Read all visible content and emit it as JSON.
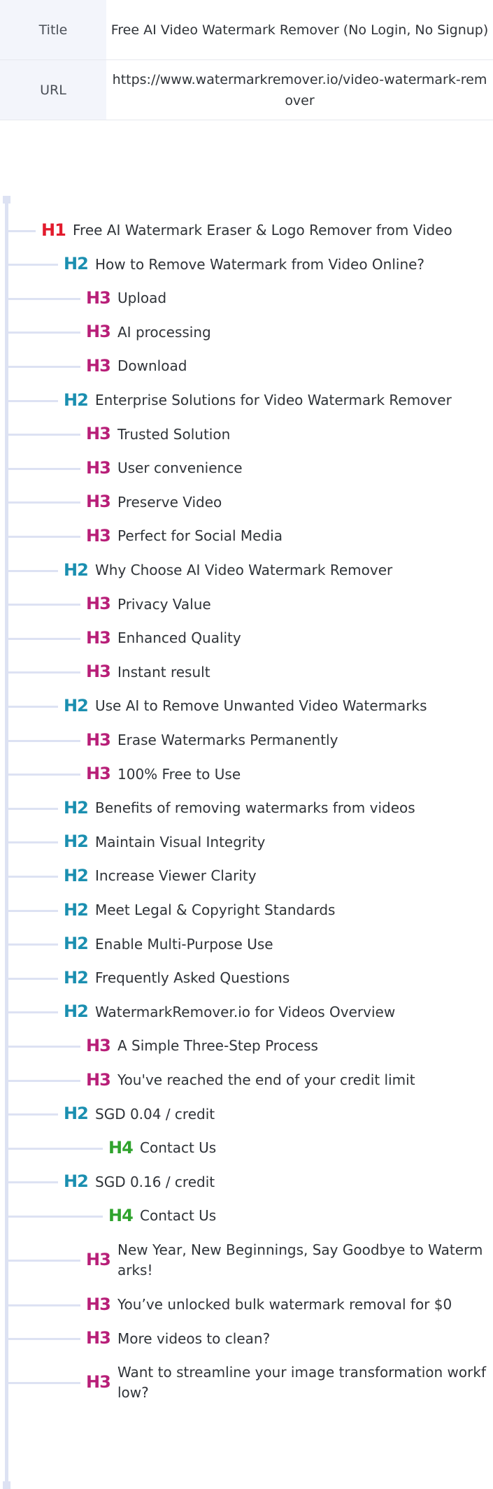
{
  "meta": {
    "title_label": "Title",
    "title_value": "Free AI Video Watermark Remover (No Login, No Signup)",
    "url_label": "URL",
    "url_value": "https://www.watermarkremover.io/video-watermark-remover"
  },
  "headings": [
    {
      "level": "H1",
      "text": "Free AI Watermark Eraser & Logo Remover from Video"
    },
    {
      "level": "H2",
      "text": "How to Remove Watermark from Video Online?"
    },
    {
      "level": "H3",
      "text": "Upload"
    },
    {
      "level": "H3",
      "text": "AI processing"
    },
    {
      "level": "H3",
      "text": "Download"
    },
    {
      "level": "H2",
      "text": "Enterprise Solutions for Video Watermark Remover"
    },
    {
      "level": "H3",
      "text": "Trusted Solution"
    },
    {
      "level": "H3",
      "text": "User convenience"
    },
    {
      "level": "H3",
      "text": "Preserve Video"
    },
    {
      "level": "H3",
      "text": "Perfect for Social Media"
    },
    {
      "level": "H2",
      "text": "Why Choose AI Video Watermark Remover"
    },
    {
      "level": "H3",
      "text": "Privacy Value"
    },
    {
      "level": "H3",
      "text": "Enhanced Quality"
    },
    {
      "level": "H3",
      "text": "Instant result"
    },
    {
      "level": "H2",
      "text": "Use AI to Remove Unwanted Video Watermarks"
    },
    {
      "level": "H3",
      "text": "Erase Watermarks Permanently"
    },
    {
      "level": "H3",
      "text": "100% Free to Use"
    },
    {
      "level": "H2",
      "text": "Benefits of removing watermarks from videos"
    },
    {
      "level": "H2",
      "text": "Maintain Visual Integrity"
    },
    {
      "level": "H2",
      "text": "Increase Viewer Clarity"
    },
    {
      "level": "H2",
      "text": "Meet Legal & Copyright Standards"
    },
    {
      "level": "H2",
      "text": "Enable Multi-Purpose Use"
    },
    {
      "level": "H2",
      "text": "Frequently Asked Questions"
    },
    {
      "level": "H2",
      "text": "WatermarkRemover.io for Videos Overview"
    },
    {
      "level": "H3",
      "text": "A Simple Three-Step Process"
    },
    {
      "level": "H3",
      "text": "You've reached the end of your credit limit"
    },
    {
      "level": "H2",
      "text": "SGD 0.04 / credit"
    },
    {
      "level": "H4",
      "text": "Contact Us"
    },
    {
      "level": "H2",
      "text": "SGD 0.16 / credit"
    },
    {
      "level": "H4",
      "text": "Contact Us"
    },
    {
      "level": "H3",
      "text": "New Year, New Beginnings, Say Goodbye to Watermarks!"
    },
    {
      "level": "H3",
      "text": "You’ve unlocked bulk watermark removal for $0"
    },
    {
      "level": "H3",
      "text": "More videos to clean?"
    },
    {
      "level": "H3",
      "text": "Want to streamline your image transformation workflow?"
    }
  ]
}
